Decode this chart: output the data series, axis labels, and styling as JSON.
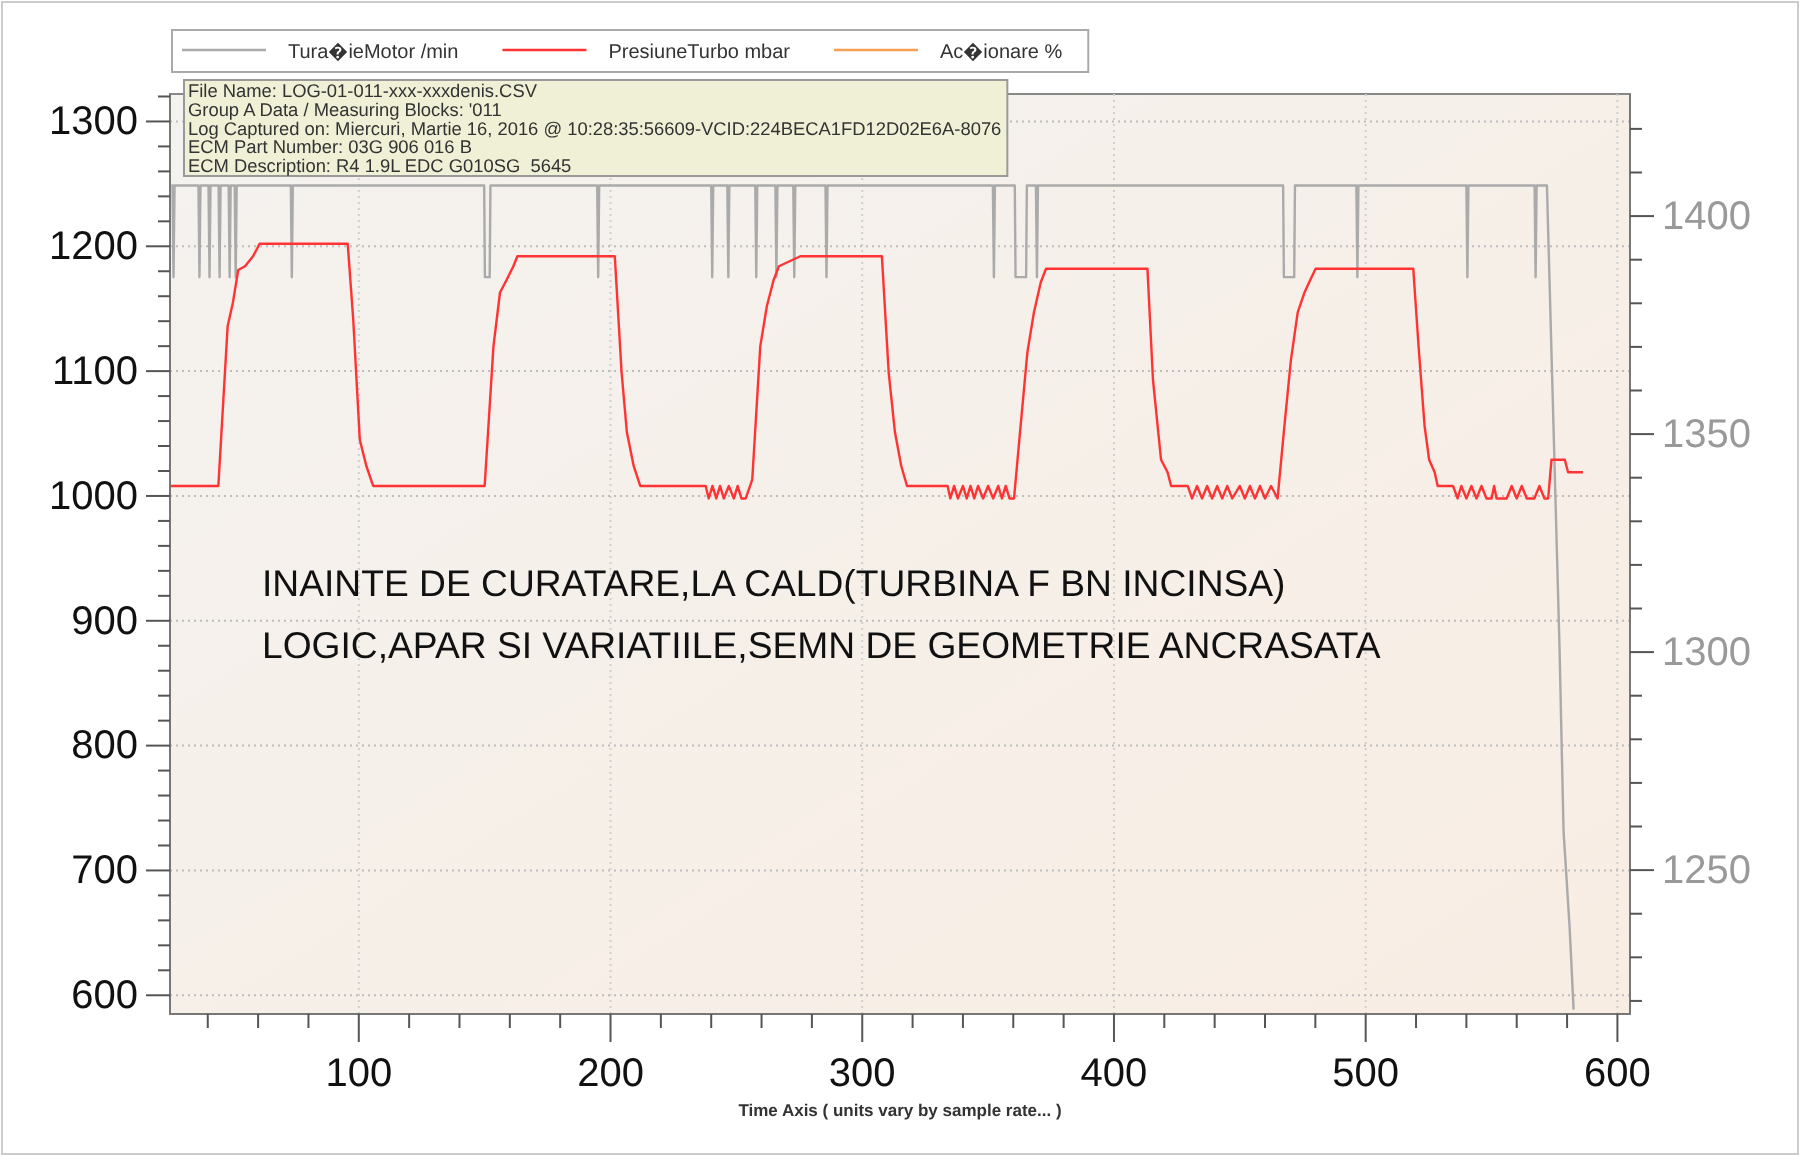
{
  "chart_data": {
    "type": "line",
    "xlabel": "Time Axis ( units vary by sample rate... )",
    "annotations": [
      "File Name: LOG-01-011-xxx-xxxdenis.CSV\nGroup A Data / Measuring Blocks: '011\nLog Captured on: Miercuri, Martie 16, 2016 @ 10:28:35:56609-VCID:224BECA1FD12D02E6A-8076\nECM Part Number: 03G 906 016 B\nECM Description: R4 1.9L EDC G010SG  5645",
      "INAINTE DE CURATARE,LA CALD(TURBINA F BN INCINSA)\nLOGIC,APAR SI VARIATIILE,SEMN DE GEOMETRIE ANCRASATA"
    ],
    "xlim": [
      25,
      605
    ],
    "ylim": [
      585,
      1322
    ],
    "y2lim": [
      1217,
      1428
    ],
    "xticks": [
      {
        "value": 40,
        "label": null
      },
      {
        "value": 60,
        "label": null
      },
      {
        "value": 80,
        "label": null
      },
      100,
      {
        "value": 120,
        "label": null
      },
      {
        "value": 140,
        "label": null
      },
      {
        "value": 160,
        "label": null
      },
      {
        "value": 180,
        "label": null
      },
      200,
      {
        "value": 220,
        "label": null
      },
      {
        "value": 240,
        "label": null
      },
      {
        "value": 260,
        "label": null
      },
      {
        "value": 280,
        "label": null
      },
      300,
      {
        "value": 320,
        "label": null
      },
      {
        "value": 340,
        "label": null
      },
      {
        "value": 360,
        "label": null
      },
      {
        "value": 380,
        "label": null
      },
      400,
      {
        "value": 420,
        "label": null
      },
      {
        "value": 440,
        "label": null
      },
      {
        "value": 460,
        "label": null
      },
      {
        "value": 480,
        "label": null
      },
      500,
      {
        "value": 520,
        "label": null
      },
      {
        "value": 540,
        "label": null
      },
      {
        "value": 560,
        "label": null
      },
      {
        "value": 580,
        "label": null
      },
      600
    ],
    "yticks": [
      600,
      {
        "value": 620,
        "label": null
      },
      {
        "value": 640,
        "label": null
      },
      {
        "value": 660,
        "label": null
      },
      {
        "value": 680,
        "label": null
      },
      700,
      {
        "value": 720,
        "label": null
      },
      {
        "value": 740,
        "label": null
      },
      {
        "value": 760,
        "label": null
      },
      {
        "value": 780,
        "label": null
      },
      800,
      {
        "value": 820,
        "label": null
      },
      {
        "value": 840,
        "label": null
      },
      {
        "value": 860,
        "label": null
      },
      {
        "value": 880,
        "label": null
      },
      900,
      {
        "value": 920,
        "label": null
      },
      {
        "value": 940,
        "label": null
      },
      {
        "value": 960,
        "label": null
      },
      {
        "value": 980,
        "label": null
      },
      1000,
      {
        "value": 1020,
        "label": null
      },
      {
        "value": 1040,
        "label": null
      },
      {
        "value": 1060,
        "label": null
      },
      {
        "value": 1080,
        "label": null
      },
      1100,
      {
        "value": 1120,
        "label": null
      },
      {
        "value": 1140,
        "label": null
      },
      {
        "value": 1160,
        "label": null
      },
      {
        "value": 1180,
        "label": null
      },
      1200,
      {
        "value": 1220,
        "label": null
      },
      {
        "value": 1240,
        "label": null
      },
      {
        "value": 1260,
        "label": null
      },
      {
        "value": 1280,
        "label": null
      },
      1300,
      {
        "value": 1320,
        "label": null
      }
    ],
    "y2ticks": [
      {
        "value": 1220,
        "label": null
      },
      {
        "value": 1230,
        "label": null
      },
      {
        "value": 1240,
        "label": null
      },
      1250,
      {
        "value": 1260,
        "label": null
      },
      {
        "value": 1270,
        "label": null
      },
      {
        "value": 1280,
        "label": null
      },
      {
        "value": 1290,
        "label": null
      },
      1300,
      {
        "value": 1310,
        "label": null
      },
      {
        "value": 1320,
        "label": null
      },
      {
        "value": 1330,
        "label": null
      },
      {
        "value": 1340,
        "label": null
      },
      1350,
      {
        "value": 1360,
        "label": null
      },
      {
        "value": 1370,
        "label": null
      },
      {
        "value": 1380,
        "label": null
      },
      {
        "value": 1390,
        "label": null
      },
      1400,
      {
        "value": 1410,
        "label": null
      },
      {
        "value": 1420,
        "label": null
      }
    ],
    "grid": true,
    "legend": "top",
    "series": [
      {
        "name": "Tura�ieMotor /min",
        "color": "#aaaaaa",
        "axis": "y2",
        "x": [
          25.5,
          26.0,
          26.4,
          26.8,
          36.3,
          36.7,
          37.1,
          40.3,
          40.7,
          41.1,
          44.3,
          44.7,
          45.1,
          48.3,
          48.7,
          49.1,
          50.7,
          51.1,
          51.5,
          73.0,
          73.4,
          73.8,
          149.8,
          150.1,
          152.0,
          152.3,
          194.7,
          195.1,
          195.5,
          240.0,
          240.4,
          240.8,
          246.4,
          246.8,
          247.2,
          257.5,
          257.9,
          258.3,
          265.5,
          265.9,
          266.3,
          272.6,
          273.0,
          273.4,
          285.4,
          285.8,
          286.2,
          351.9,
          352.3,
          352.7,
          360.6,
          360.9,
          365.1,
          365.4,
          369.0,
          369.4,
          369.8,
          467.2,
          467.5,
          471.6,
          471.9,
          496.3,
          496.7,
          497.1,
          540.0,
          540.4,
          540.8,
          567.1,
          567.5,
          567.9,
          568.5,
          572.0,
          577.0,
          578.6,
          581.0,
          582.6
        ],
        "values": [
          1407,
          1407,
          1386,
          1407,
          1407,
          1386,
          1407,
          1407,
          1386,
          1407,
          1407,
          1386,
          1407,
          1407,
          1386,
          1407,
          1407,
          1386,
          1407,
          1407,
          1386,
          1407,
          1407,
          1386,
          1386,
          1407,
          1407,
          1386,
          1407,
          1407,
          1386,
          1407,
          1407,
          1386,
          1407,
          1407,
          1386,
          1407,
          1407,
          1386,
          1407,
          1407,
          1386,
          1407,
          1407,
          1386,
          1407,
          1407,
          1386,
          1407,
          1407,
          1386,
          1386,
          1407,
          1407,
          1386,
          1407,
          1407,
          1386,
          1386,
          1407,
          1407,
          1386,
          1407,
          1407,
          1386,
          1407,
          1407,
          1386,
          1407,
          1407,
          1407,
          1301,
          1259,
          1237,
          1218
        ]
      },
      {
        "name": "PresiuneTurbo mbar",
        "color": "#ff3333",
        "x": [
          25.3,
          44.2,
          47.9,
          50.0,
          52.1,
          54.8,
          58.0,
          60.6,
          95.6,
          97.8,
          100.4,
          103.0,
          105.7,
          150.0,
          153.5,
          156.1,
          158.7,
          161.4,
          163.0,
          201.7,
          204.4,
          206.5,
          209.2,
          211.8,
          237.8,
          239.0,
          240.5,
          242.0,
          243.5,
          245.0,
          247.0,
          249.0,
          250.5,
          252.0,
          253.7,
          256.3,
          259.5,
          262.1,
          264.8,
          266.9,
          275.4,
          307.8,
          310.5,
          313.0,
          315.5,
          317.8,
          333.9,
          335.0,
          336.5,
          338.0,
          340.0,
          341.5,
          343.0,
          344.5,
          346.0,
          348.0,
          350.0,
          352.0,
          354.0,
          355.5,
          357.0,
          358.5,
          360.3,
          362.9,
          365.6,
          368.2,
          370.9,
          373.0,
          413.3,
          415.5,
          418.7,
          421.3,
          422.7,
          429.3,
          431.0,
          433.0,
          435.0,
          437.0,
          439.0,
          441.0,
          443.0,
          445.0,
          447.0,
          450.0,
          452.0,
          454.0,
          456.0,
          458.0,
          460.0,
          462.4,
          465.0,
          467.7,
          470.3,
          473.0,
          475.7,
          477.5,
          480.1,
          518.9,
          521.0,
          523.4,
          525.2,
          527.4,
          528.6,
          534.7,
          536.5,
          538.0,
          540.0,
          542.0,
          544.0,
          546.0,
          548.0,
          550.0,
          551.0,
          552.0,
          556.0,
          558.0,
          560.0,
          562.0,
          564.0,
          567.0,
          569.0,
          571.0,
          572.5,
          573.8,
          579.1,
          580.4,
          586.3
        ],
        "values": [
          1008,
          1008,
          1136,
          1155,
          1181,
          1184,
          1192,
          1202,
          1202,
          1141,
          1045,
          1024,
          1008,
          1008,
          1120,
          1163,
          1173,
          1184,
          1192,
          1192,
          1099,
          1051,
          1024,
          1008,
          1008,
          998,
          1008,
          998,
          1008,
          998,
          1008,
          998,
          1008,
          998,
          998,
          1013,
          1120,
          1152,
          1173,
          1184,
          1192,
          1192,
          1099,
          1051,
          1024,
          1008,
          1008,
          998,
          1008,
          998,
          1008,
          998,
          1008,
          998,
          1008,
          998,
          1008,
          998,
          1008,
          998,
          1008,
          998,
          998,
          1056,
          1115,
          1147,
          1171,
          1182,
          1182,
          1093,
          1029,
          1019,
          1008,
          1008,
          998,
          1008,
          998,
          1008,
          998,
          1008,
          998,
          1008,
          998,
          1008,
          998,
          1008,
          998,
          1008,
          998,
          1008,
          998,
          1056,
          1109,
          1147,
          1163,
          1171,
          1182,
          1182,
          1120,
          1056,
          1029,
          1019,
          1008,
          1008,
          998,
          1008,
          998,
          1008,
          998,
          1008,
          998,
          998,
          1008,
          998,
          998,
          1008,
          998,
          1008,
          998,
          998,
          1008,
          998,
          998,
          1029,
          1029,
          1019,
          1019
        ]
      },
      {
        "name": "Ac�ionare %",
        "color": "#f5a050"
      }
    ]
  }
}
